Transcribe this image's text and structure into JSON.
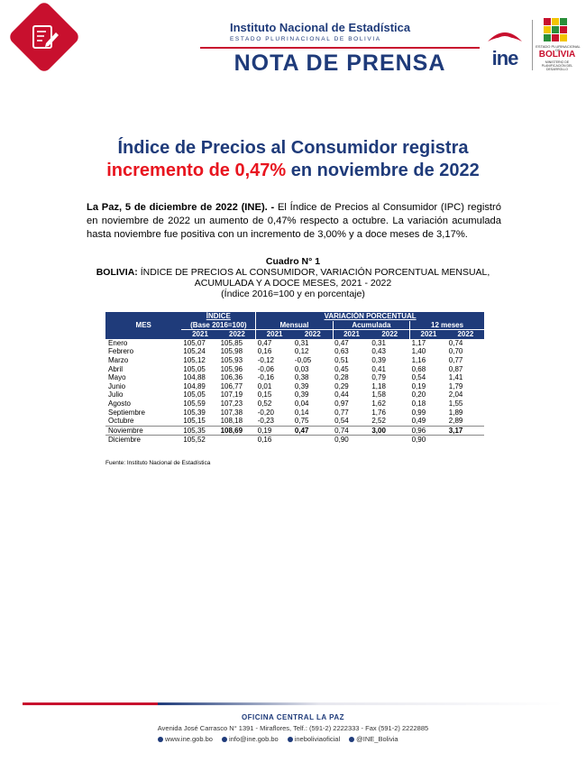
{
  "header": {
    "institution": "Instituto Nacional de Estadística",
    "subtitle": "ESTADO PLURINACIONAL DE BOLIVIA",
    "nota": "NOTA DE PRENSA",
    "ine_logo_text": "ine",
    "bolivia_small": "ESTADO PLURINACIONAL DE",
    "bolivia_name": "BOLIVIA",
    "ministry": "MINISTERIO DE PLANIFICACIÓN DEL DESARROLLO"
  },
  "headline": {
    "line1": "Índice de Precios al Consumidor registra",
    "line2_red": "incremento de 0,47%",
    "line2_rest": " en noviembre de 2022"
  },
  "lead": {
    "dateline": "La Paz, 5 de diciembre de 2022 (INE). -",
    "text": " El Índice de Precios al Consumidor (IPC) registró en noviembre de 2022 un aumento de 0,47% respecto a octubre. La variación acumulada hasta noviembre fue positiva con un incremento de 3,00% y a doce meses de 3,17%."
  },
  "table_caption": {
    "cuadro": "Cuadro N° 1",
    "line1_bold": "BOLIVIA:",
    "line1_rest": " ÍNDICE DE PRECIOS AL CONSUMIDOR, VARIACIÓN PORCENTUAL MENSUAL,",
    "line2": "ACUMULADA Y A DOCE MESES, 2021 - 2022",
    "line3": "(Índice 2016=100 y en porcentaje)"
  },
  "table": {
    "headers": {
      "mes": "MES",
      "indice": "ÍNDICE",
      "base": "(Base 2016=100)",
      "variacion": "VARIACIÓN PORCENTUAL",
      "mensual": "Mensual",
      "acumulada": "Acumulada",
      "doce": "12 meses",
      "y2021": "2021",
      "y2022": "2022"
    },
    "rows": [
      {
        "mes": "Enero",
        "i21": "105,07",
        "i22": "105,85",
        "m21": "0,47",
        "m22": "0,31",
        "a21": "0,47",
        "a22": "0,31",
        "d21": "1,17",
        "d22": "0,74"
      },
      {
        "mes": "Febrero",
        "i21": "105,24",
        "i22": "105,98",
        "m21": "0,16",
        "m22": "0,12",
        "a21": "0,63",
        "a22": "0,43",
        "d21": "1,40",
        "d22": "0,70"
      },
      {
        "mes": "Marzo",
        "i21": "105,12",
        "i22": "105,93",
        "m21": "-0,12",
        "m22": "-0,05",
        "a21": "0,51",
        "a22": "0,39",
        "d21": "1,16",
        "d22": "0,77"
      },
      {
        "mes": "Abril",
        "i21": "105,05",
        "i22": "105,96",
        "m21": "-0,06",
        "m22": "0,03",
        "a21": "0,45",
        "a22": "0,41",
        "d21": "0,68",
        "d22": "0,87"
      },
      {
        "mes": "Mayo",
        "i21": "104,88",
        "i22": "106,36",
        "m21": "-0,16",
        "m22": "0,38",
        "a21": "0,28",
        "a22": "0,79",
        "d21": "0,54",
        "d22": "1,41"
      },
      {
        "mes": "Junio",
        "i21": "104,89",
        "i22": "106,77",
        "m21": "0,01",
        "m22": "0,39",
        "a21": "0,29",
        "a22": "1,18",
        "d21": "0,19",
        "d22": "1,79"
      },
      {
        "mes": "Julio",
        "i21": "105,05",
        "i22": "107,19",
        "m21": "0,15",
        "m22": "0,39",
        "a21": "0,44",
        "a22": "1,58",
        "d21": "0,20",
        "d22": "2,04"
      },
      {
        "mes": "Agosto",
        "i21": "105,59",
        "i22": "107,23",
        "m21": "0,52",
        "m22": "0,04",
        "a21": "0,97",
        "a22": "1,62",
        "d21": "0,18",
        "d22": "1,55"
      },
      {
        "mes": "Septiembre",
        "i21": "105,39",
        "i22": "107,38",
        "m21": "-0,20",
        "m22": "0,14",
        "a21": "0,77",
        "a22": "1,76",
        "d21": "0,99",
        "d22": "1,89"
      },
      {
        "mes": "Octubre",
        "i21": "105,15",
        "i22": "108,18",
        "m21": "-0,23",
        "m22": "0,75",
        "a21": "0,54",
        "a22": "2,52",
        "d21": "0,49",
        "d22": "2,89"
      },
      {
        "mes": "Noviembre",
        "i21": "105,35",
        "i22": "108,69",
        "m21": "0,19",
        "m22": "0,47",
        "a21": "0,74",
        "a22": "3,00",
        "d21": "0,96",
        "d22": "3,17"
      },
      {
        "mes": "Diciembre",
        "i21": "105,52",
        "i22": "",
        "m21": "0,16",
        "m22": "",
        "a21": "0,90",
        "a22": "",
        "d21": "0,90",
        "d22": ""
      }
    ],
    "source": "Fuente: Instituto Nacional de Estadística"
  },
  "footer": {
    "office": "OFICINA CENTRAL LA PAZ",
    "address": "Avenida José Carrasco N° 1391 - Miraflores, Telf.: (591-2) 2222333 - Fax (591-2) 2222885",
    "web": "www.ine.gob.bo",
    "email": "info@ine.gob.bo",
    "facebook": "ineboliviaoficial",
    "twitter": "@INE_Bolivia"
  },
  "colors": {
    "brand_blue": "#1f3b7a",
    "brand_red": "#c8102e",
    "headline_red": "#e8151f"
  }
}
